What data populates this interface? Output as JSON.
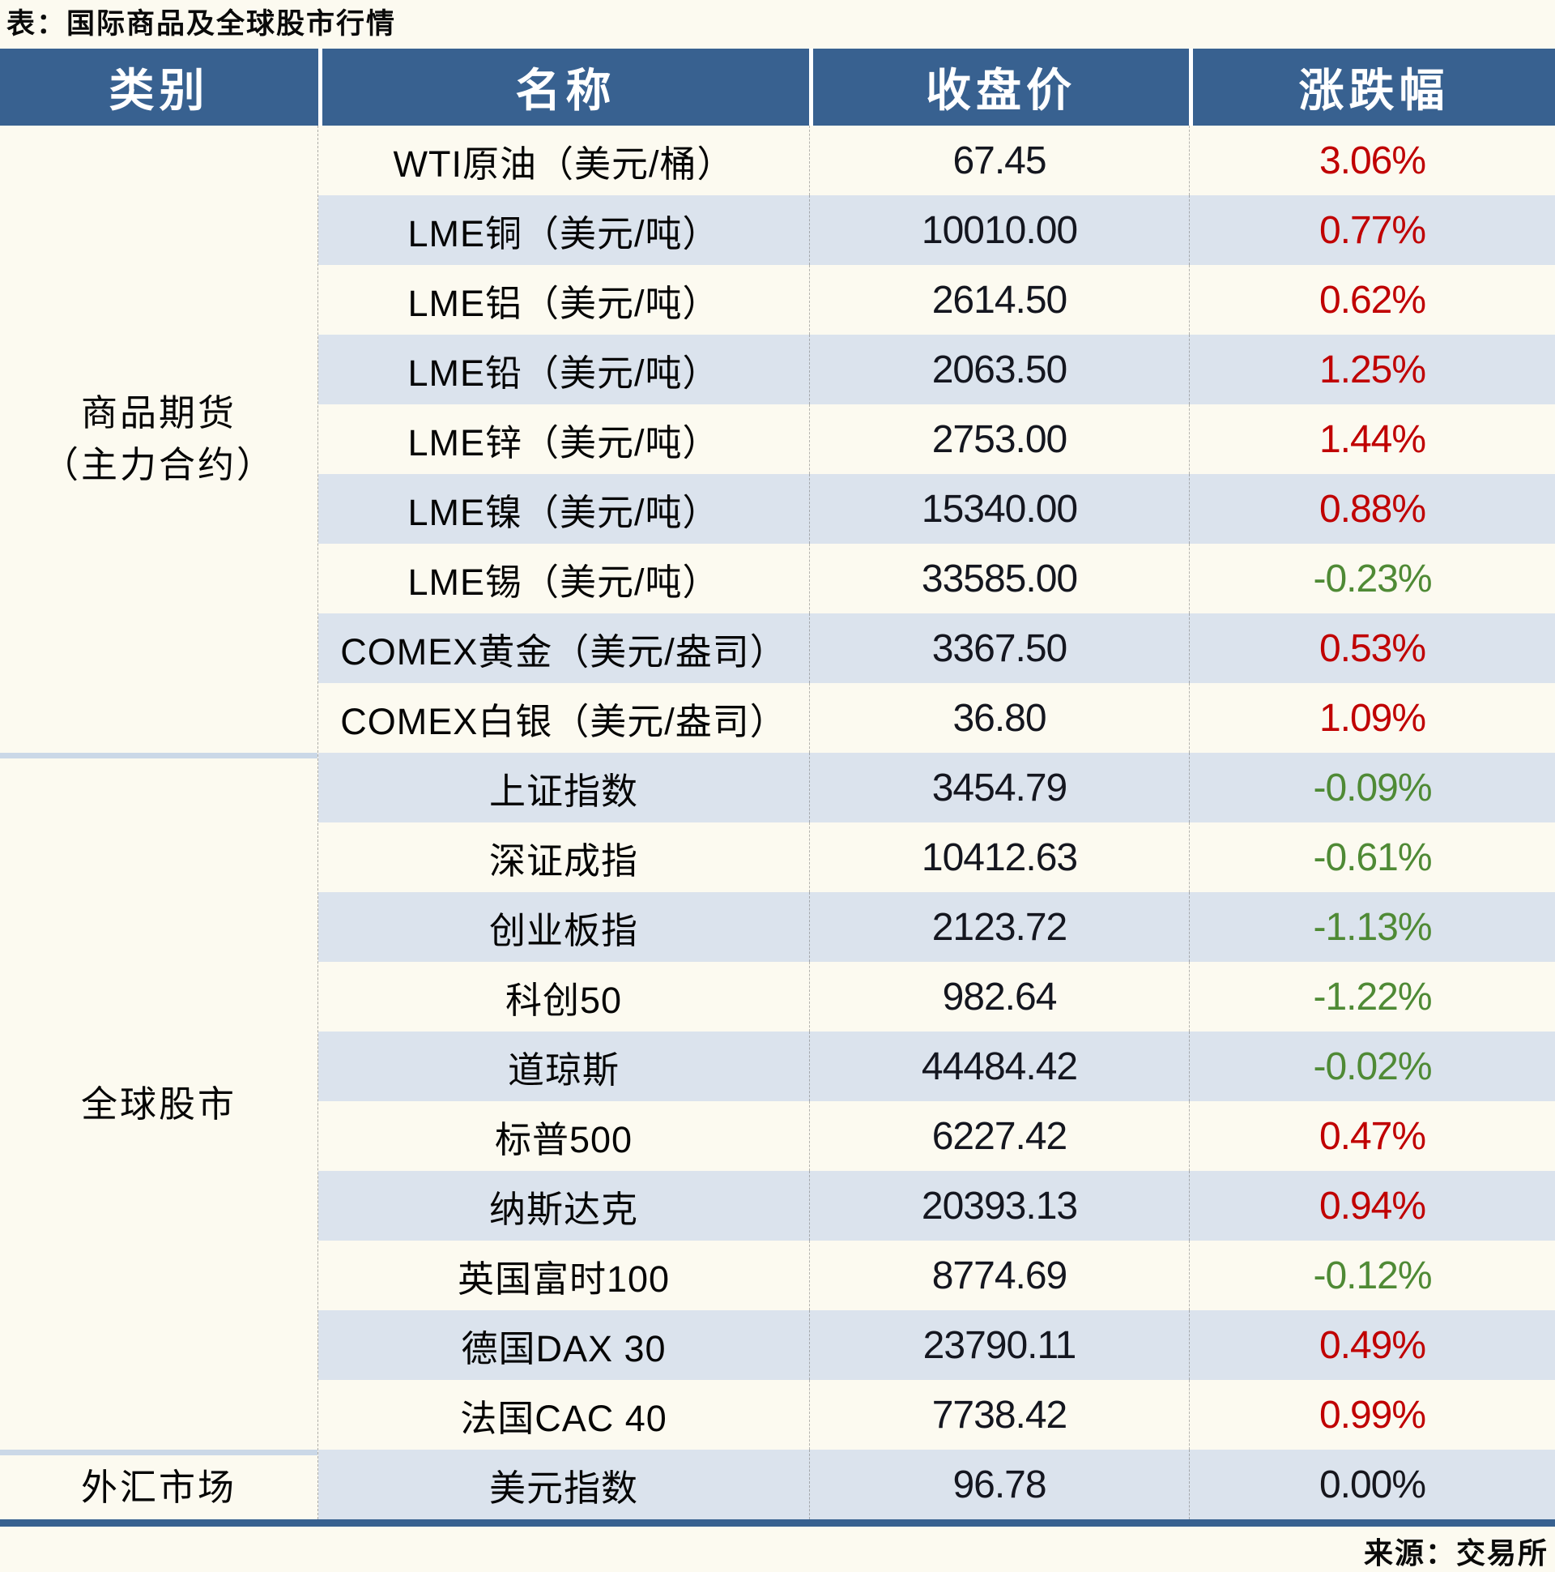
{
  "title": "表：国际商品及全球股市行情",
  "source": "来源：交易所",
  "columns": [
    "类别",
    "名称",
    "收盘价",
    "涨跌幅"
  ],
  "colors": {
    "page-bg": "#FCFAF0",
    "header-bg": "#386190",
    "stripe-bg": "#DBE3ED",
    "divider": "#CBD8E7",
    "up": "#C00000",
    "down": "#4F8A35",
    "flat": "#16161C"
  },
  "sections": [
    {
      "category_lines": [
        "商品期货",
        "（主力合约）"
      ],
      "rows": [
        {
          "name": "WTI原油（美元/桶）",
          "close": "67.45",
          "change": "3.06%",
          "dir": "up"
        },
        {
          "name": "LME铜（美元/吨）",
          "close": "10010.00",
          "change": "0.77%",
          "dir": "up"
        },
        {
          "name": "LME铝（美元/吨）",
          "close": "2614.50",
          "change": "0.62%",
          "dir": "up"
        },
        {
          "name": "LME铅（美元/吨）",
          "close": "2063.50",
          "change": "1.25%",
          "dir": "up"
        },
        {
          "name": "LME锌（美元/吨）",
          "close": "2753.00",
          "change": "1.44%",
          "dir": "up"
        },
        {
          "name": "LME镍（美元/吨）",
          "close": "15340.00",
          "change": "0.88%",
          "dir": "up"
        },
        {
          "name": "LME锡（美元/吨）",
          "close": "33585.00",
          "change": "-0.23%",
          "dir": "down"
        },
        {
          "name": "COMEX黄金（美元/盎司）",
          "close": "3367.50",
          "change": "0.53%",
          "dir": "up"
        },
        {
          "name": "COMEX白银（美元/盎司）",
          "close": "36.80",
          "change": "1.09%",
          "dir": "up"
        }
      ]
    },
    {
      "category_lines": [
        "全球股市"
      ],
      "rows": [
        {
          "name": "上证指数",
          "close": "3454.79",
          "change": "-0.09%",
          "dir": "down"
        },
        {
          "name": "深证成指",
          "close": "10412.63",
          "change": "-0.61%",
          "dir": "down"
        },
        {
          "name": "创业板指",
          "close": "2123.72",
          "change": "-1.13%",
          "dir": "down"
        },
        {
          "name": "科创50",
          "close": "982.64",
          "change": "-1.22%",
          "dir": "down"
        },
        {
          "name": "道琼斯",
          "close": "44484.42",
          "change": "-0.02%",
          "dir": "down"
        },
        {
          "name": "标普500",
          "close": "6227.42",
          "change": "0.47%",
          "dir": "up"
        },
        {
          "name": "纳斯达克",
          "close": "20393.13",
          "change": "0.94%",
          "dir": "up"
        },
        {
          "name": "英国富时100",
          "close": "8774.69",
          "change": "-0.12%",
          "dir": "down"
        },
        {
          "name": "德国DAX 30",
          "close": "23790.11",
          "change": "0.49%",
          "dir": "up"
        },
        {
          "name": "法国CAC 40",
          "close": "7738.42",
          "change": "0.99%",
          "dir": "up"
        }
      ]
    },
    {
      "category_lines": [
        "外汇市场"
      ],
      "rows": [
        {
          "name": "美元指数",
          "close": "96.78",
          "change": "0.00%",
          "dir": "flat"
        }
      ]
    }
  ],
  "chart_data": {
    "type": "table",
    "title": "表：国际商品及全球股市行情",
    "columns": [
      "类别",
      "名称",
      "收盘价",
      "涨跌幅"
    ],
    "rows": [
      [
        "商品期货（主力合约）",
        "WTI原油（美元/桶）",
        67.45,
        "3.06%"
      ],
      [
        "商品期货（主力合约）",
        "LME铜（美元/吨）",
        10010.0,
        "0.77%"
      ],
      [
        "商品期货（主力合约）",
        "LME铝（美元/吨）",
        2614.5,
        "0.62%"
      ],
      [
        "商品期货（主力合约）",
        "LME铅（美元/吨）",
        2063.5,
        "1.25%"
      ],
      [
        "商品期货（主力合约）",
        "LME锌（美元/吨）",
        2753.0,
        "1.44%"
      ],
      [
        "商品期货（主力合约）",
        "LME镍（美元/吨）",
        15340.0,
        "0.88%"
      ],
      [
        "商品期货（主力合约）",
        "LME锡（美元/吨）",
        33585.0,
        "-0.23%"
      ],
      [
        "商品期货（主力合约）",
        "COMEX黄金（美元/盎司）",
        3367.5,
        "0.53%"
      ],
      [
        "商品期货（主力合约）",
        "COMEX白银（美元/盎司）",
        36.8,
        "1.09%"
      ],
      [
        "全球股市",
        "上证指数",
        3454.79,
        "-0.09%"
      ],
      [
        "全球股市",
        "深证成指",
        10412.63,
        "-0.61%"
      ],
      [
        "全球股市",
        "创业板指",
        2123.72,
        "-1.13%"
      ],
      [
        "全球股市",
        "科创50",
        982.64,
        "-1.22%"
      ],
      [
        "全球股市",
        "道琼斯",
        44484.42,
        "-0.02%"
      ],
      [
        "全球股市",
        "标普500",
        6227.42,
        "0.47%"
      ],
      [
        "全球股市",
        "纳斯达克",
        20393.13,
        "0.94%"
      ],
      [
        "全球股市",
        "英国富时100",
        8774.69,
        "-0.12%"
      ],
      [
        "全球股市",
        "德国DAX 30",
        23790.11,
        "0.49%"
      ],
      [
        "全球股市",
        "法国CAC 40",
        7738.42,
        "0.99%"
      ],
      [
        "外汇市场",
        "美元指数",
        96.78,
        "0.00%"
      ]
    ],
    "source_note": "来源：交易所"
  }
}
